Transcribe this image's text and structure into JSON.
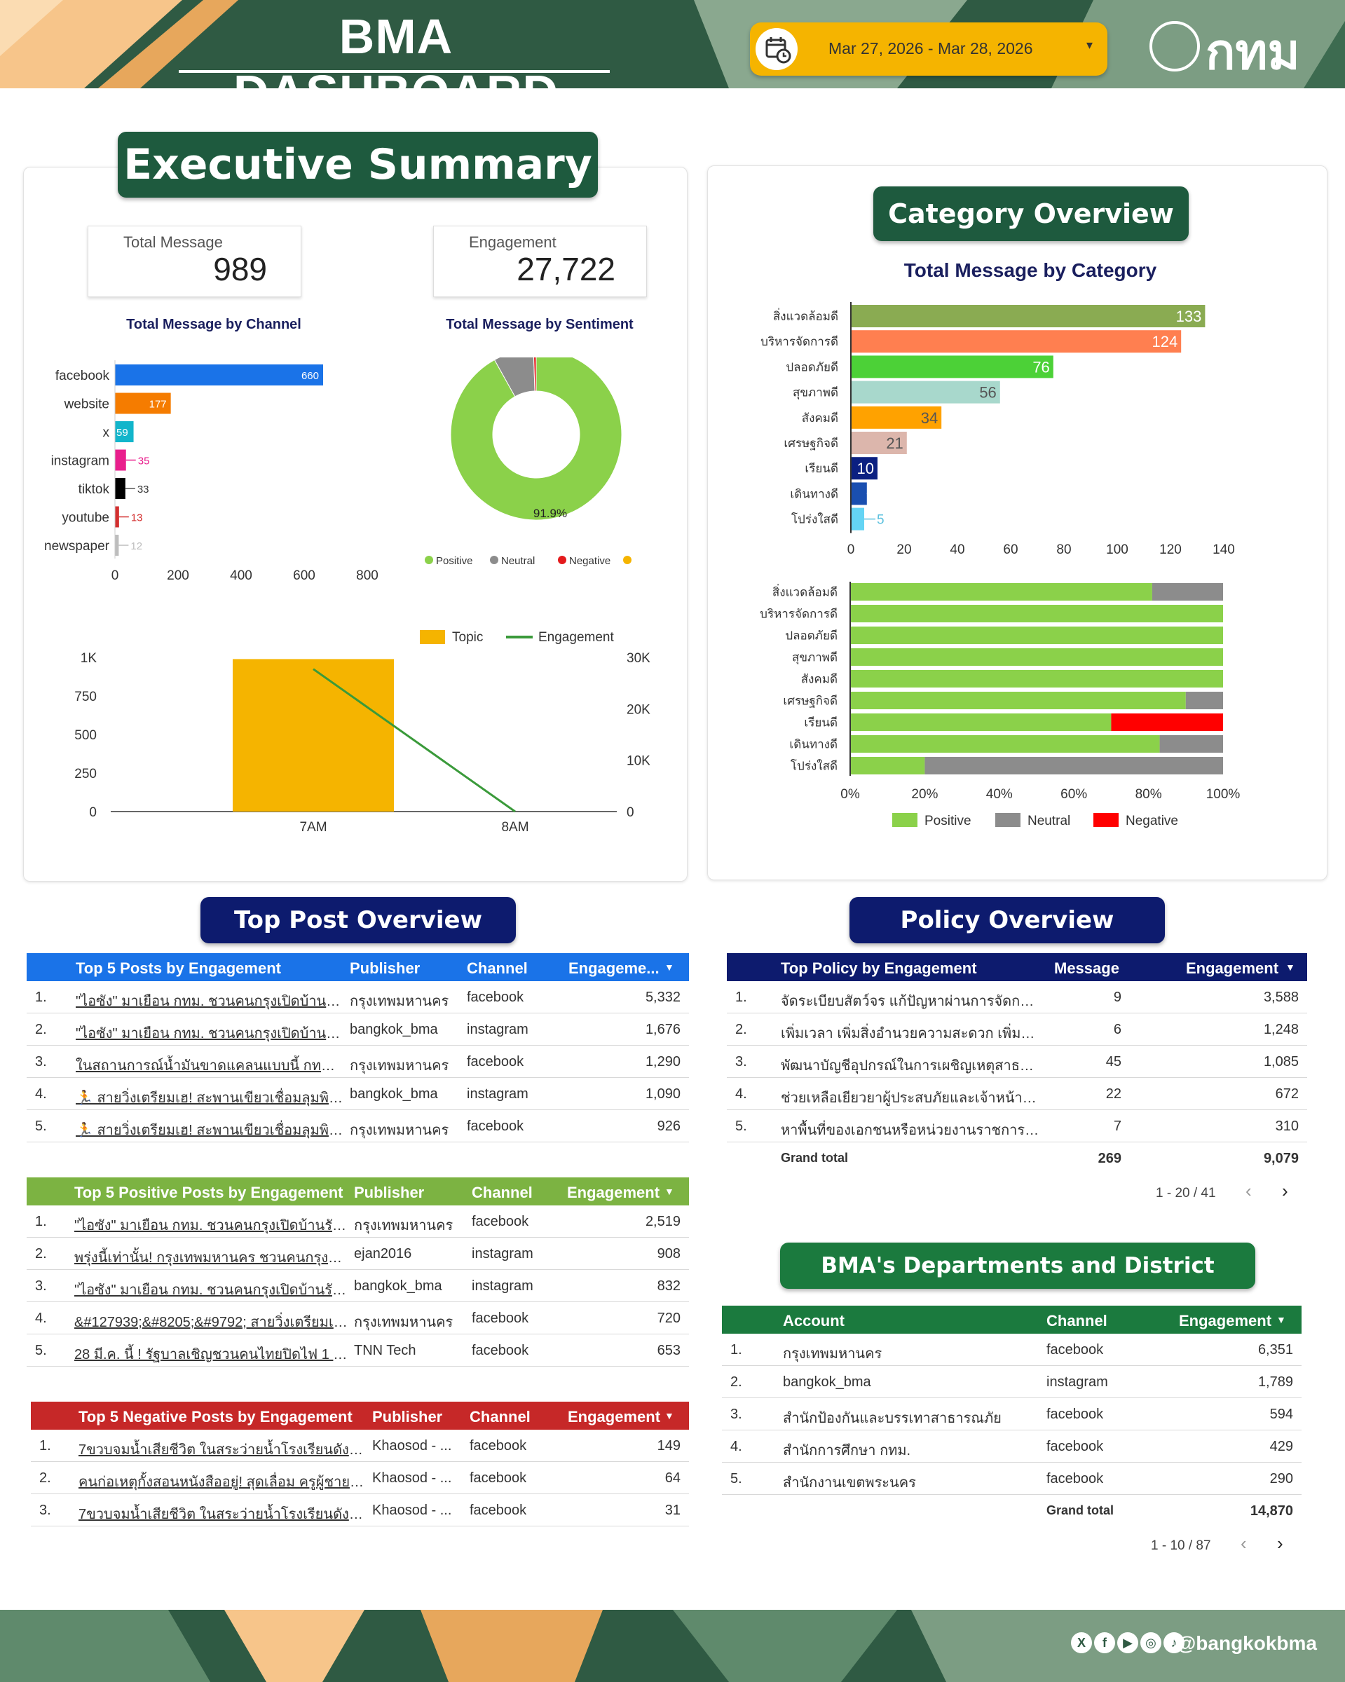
{
  "header": {
    "title": "BMA DASHBOARD",
    "date_range": "Mar 27, 2026 - Mar 28, 2026",
    "logo_text": "กทม"
  },
  "exec": {
    "title": "Executive Summary",
    "kpi_total_label": "Total Message",
    "kpi_total_value": "989",
    "kpi_eng_label": "Engagement",
    "kpi_eng_value": "27,722"
  },
  "chart_data": [
    {
      "id": "channel",
      "type": "bar",
      "orientation": "horizontal",
      "title": "Total Message by Channel",
      "categories": [
        "facebook",
        "website",
        "x",
        "instagram",
        "tiktok",
        "youtube",
        "newspaper"
      ],
      "values": [
        660,
        177,
        59,
        35,
        33,
        13,
        12
      ],
      "colors": [
        "#1a73e8",
        "#f57c00",
        "#12b5cb",
        "#e91e8c",
        "#000000",
        "#d32f2f",
        "#bdbdbd"
      ],
      "xlim": [
        0,
        800
      ],
      "ticks": [
        "0",
        "200",
        "400",
        "600",
        "800"
      ]
    },
    {
      "id": "sentiment",
      "type": "pie",
      "title": "Total Message by Sentiment",
      "labels": [
        "Positive",
        "Neutral",
        "Negative",
        ""
      ],
      "values": [
        91.9,
        7.6,
        0.5,
        0
      ],
      "colors": [
        "#8bd14a",
        "#8c8c8c",
        "#e41a1c",
        "#f5b400"
      ],
      "data_labels": [
        "91.9%"
      ]
    },
    {
      "id": "time",
      "type": "bar",
      "title": "",
      "categories": [
        "7AM",
        "8AM"
      ],
      "series": [
        {
          "name": "Topic",
          "type": "bar",
          "values": [
            989,
            0
          ],
          "color": "#f5b400"
        },
        {
          "name": "Engagement",
          "type": "line",
          "values": [
            27722,
            0
          ],
          "color": "#3a9a3a"
        }
      ],
      "ylim": [
        0,
        1000
      ],
      "y2lim": [
        0,
        30000
      ],
      "yticks": [
        "0",
        "250",
        "500",
        "750",
        "1K"
      ],
      "y2ticks": [
        "0",
        "10K",
        "20K",
        "30K"
      ]
    },
    {
      "id": "category",
      "type": "bar",
      "orientation": "horizontal",
      "title": "Total Message by Category",
      "categories": [
        "สิ่งแวดล้อมดี",
        "บริหารจัดการดี",
        "ปลอดภัยดี",
        "สุขภาพดี",
        "สังคมดี",
        "เศรษฐกิจดี",
        "เรียนดี",
        "เดินทางดี",
        "โปร่งใสดี"
      ],
      "values": [
        133,
        124,
        76,
        56,
        34,
        21,
        10,
        6,
        5
      ],
      "colors": [
        "#8aab52",
        "#ff7f50",
        "#4cd137",
        "#a8d8cc",
        "#ffa200",
        "#dcb6ac",
        "#0b2081",
        "#1a4fb0",
        "#64d4f4"
      ],
      "label_colors": [
        "#fff",
        "#fff",
        "#fff",
        "#555",
        "#555",
        "#555",
        "#fff",
        "#fff",
        "#5bc0de"
      ],
      "xlim": [
        0,
        140
      ],
      "ticks": [
        "0",
        "20",
        "40",
        "60",
        "80",
        "100",
        "120",
        "140"
      ]
    },
    {
      "id": "category_sentiment",
      "type": "bar",
      "orientation": "horizontal",
      "stacked": "percent",
      "categories": [
        "สิ่งแวดล้อมดี",
        "บริหารจัดการดี",
        "ปลอดภัยดี",
        "สุขภาพดี",
        "สังคมดี",
        "เศรษฐกิจดี",
        "เรียนดี",
        "เดินทางดี",
        "โปร่งใสดี"
      ],
      "series": [
        {
          "name": "Positive",
          "values": [
            81,
            100,
            100,
            100,
            100,
            90,
            70,
            83,
            20
          ],
          "color": "#8bd14a"
        },
        {
          "name": "Neutral",
          "values": [
            19,
            0,
            0,
            0,
            0,
            10,
            0,
            17,
            80
          ],
          "color": "#8c8c8c"
        },
        {
          "name": "Negative",
          "values": [
            0,
            0,
            0,
            0,
            0,
            0,
            30,
            0,
            0
          ],
          "color": "#ff0000"
        }
      ],
      "ticks": [
        "0%",
        "20%",
        "40%",
        "60%",
        "80%",
        "100%"
      ]
    }
  ],
  "category": {
    "title": "Category Overview"
  },
  "top_post": {
    "title": "Top Post Overview",
    "engagement": {
      "headers": [
        "Top 5 Posts by Engagement",
        "Publisher",
        "Channel",
        "Engageme...",
        "▼"
      ],
      "color": "#1a73e8",
      "rows": [
        [
          "1.",
          "\"ไอซัง\" มาเยือน กทม. ชวนคนกรุงเปิดบ้านรับรักน้อง...",
          "กรุงเทพมหานคร",
          "facebook",
          "5,332"
        ],
        [
          "2.",
          "\"ไอซัง\" มาเยือน กทม. ชวนคนกรุงเปิดบ้านรับรักน้อง...",
          "bangkok_bma",
          "instagram",
          "1,676"
        ],
        [
          "3.",
          "ในสถานการณ์น้ำมันขาดแคลนแบบนี้ กทม. จะมีวิธี...",
          "กรุงเทพมหานคร",
          "facebook",
          "1,290"
        ],
        [
          "4.",
          "🏃 สายวิ่งเตรียมเฮ! สะพานเขียวเชื่อมลุมพินี–เบญ...",
          "bangkok_bma",
          "instagram",
          "1,090"
        ],
        [
          "5.",
          "🏃 สายวิ่งเตรียมเฮ! สะพานเขียวเชื่อมลุมพินี–เบญ...",
          "กรุงเทพมหานคร",
          "facebook",
          "926"
        ]
      ]
    },
    "positive": {
      "headers": [
        "Top 5 Positive Posts by Engagement",
        "Publisher",
        "Channel",
        "Engagement",
        "▼"
      ],
      "color": "#7cb342",
      "rows": [
        [
          "1.",
          "\"ไอซัง\" มาเยือน กทม. ชวนคนกรุงเปิดบ้านรับรักน้อง...",
          "กรุงเทพมหานคร",
          "facebook",
          "2,519"
        ],
        [
          "2.",
          "พรุ่งนี้เท่านั้น! กรุงเทพมหานคร ชวนคนกรุงชาเลนจ์ ป...",
          "ejan2016",
          "instagram",
          "908"
        ],
        [
          "3.",
          "\"ไอซัง\" มาเยือน กทม. ชวนคนกรุงเปิดบ้านรับรักน้อง...",
          "bangkok_bma",
          "instagram",
          "832"
        ],
        [
          "4.",
          "&#127939;&#8205;&#9792; สายวิ่งเตรียมเฮ! ...",
          "กรุงเทพมหานคร",
          "facebook",
          "720"
        ],
        [
          "5.",
          "28 มี.ค. นี้ ! รัฐบาลเชิญชวนคนไทยปิดไฟ 1 ชั่วโมง ...",
          "TNN Tech",
          "facebook",
          "653"
        ]
      ]
    },
    "negative": {
      "headers": [
        "Top 5 Negative Posts by Engagement",
        "Publisher",
        "Channel",
        "Engagement",
        "▼"
      ],
      "color": "#c62828",
      "rows": [
        [
          "1.",
          "7ขวบจมน้ำเสียชีวิต ในสระว่ายน้ำโรงเรียนดังกลางกรุง ...",
          "Khaosod - ...",
          "facebook",
          "149"
        ],
        [
          "2.",
          "คนก่อเหตุกั้งสอนหนังสืออยู่! สุดเลื่อม ครูผู้ชายลวง ด.ญ...",
          "Khaosod - ...",
          "facebook",
          "64"
        ],
        [
          "3.",
          "7ขวบจมน้ำเสียชีวิต ในสระว่ายน้ำโรงเรียนดังกลางกรุง ...",
          "Khaosod - ...",
          "facebook",
          "31"
        ]
      ]
    }
  },
  "policy": {
    "title": "Policy Overview",
    "headers": [
      "Top Policy by Engagement",
      "Message",
      "Engagement",
      "▼"
    ],
    "color": "#0d1b6e",
    "rows": [
      [
        "1.",
        "จัดระเบียบสัตว์จร แก้ปัญหาผ่านการจัดการอย่าง...",
        "9",
        "3,588"
      ],
      [
        "2.",
        "เพิ่มเวลา เพิ่มสิ่งอำนวยความสะดวก เพิ่มการเข้า...",
        "6",
        "1,248"
      ],
      [
        "3.",
        "พัฒนาบัญชีอุปกรณ์ในการเผชิญเหตุสาธารณภัย...",
        "45",
        "1,085"
      ],
      [
        "4.",
        "ช่วยเหลือเยียวยาผู้ประสบภัยและเจ้าหน้าที่ปฏิบั...",
        "22",
        "672"
      ],
      [
        "5.",
        "หาพื้นที่ของเอกชนหรือหน่วยงานราชการที่สามา...",
        "7",
        "310"
      ]
    ],
    "grand_label": "Grand total",
    "grand_msg": "269",
    "grand_eng": "9,079",
    "pager": "1 - 20 / 41"
  },
  "dept": {
    "title": "BMA's Departments and District Offices",
    "headers": [
      "Account",
      "Channel",
      "Engagement",
      "▼"
    ],
    "color": "#1b7a3e",
    "rows": [
      [
        "1.",
        "กรุงเทพมหานคร",
        "facebook",
        "6,351"
      ],
      [
        "2.",
        "bangkok_bma",
        "instagram",
        "1,789"
      ],
      [
        "3.",
        "สำนักป้องกันและบรรเทาสาธารณภัย",
        "facebook",
        "594"
      ],
      [
        "4.",
        "สำนักการศึกษา กทม.",
        "facebook",
        "429"
      ],
      [
        "5.",
        "สำนักงานเขตพระนคร",
        "facebook",
        "290"
      ]
    ],
    "grand_label": "Grand total",
    "grand_eng": "14,870",
    "pager": "1 - 10 / 87"
  },
  "footer": {
    "handle": "@bangkokbma",
    "icons": [
      "x-icon",
      "facebook-icon",
      "youtube-icon",
      "instagram-icon",
      "tiktok-icon"
    ]
  },
  "colors": {
    "brand_green": "#2f5a43",
    "pill_green": "#1e5a3e",
    "pill_navy": "#0d1b6e",
    "date_yellow": "#f5b400"
  }
}
